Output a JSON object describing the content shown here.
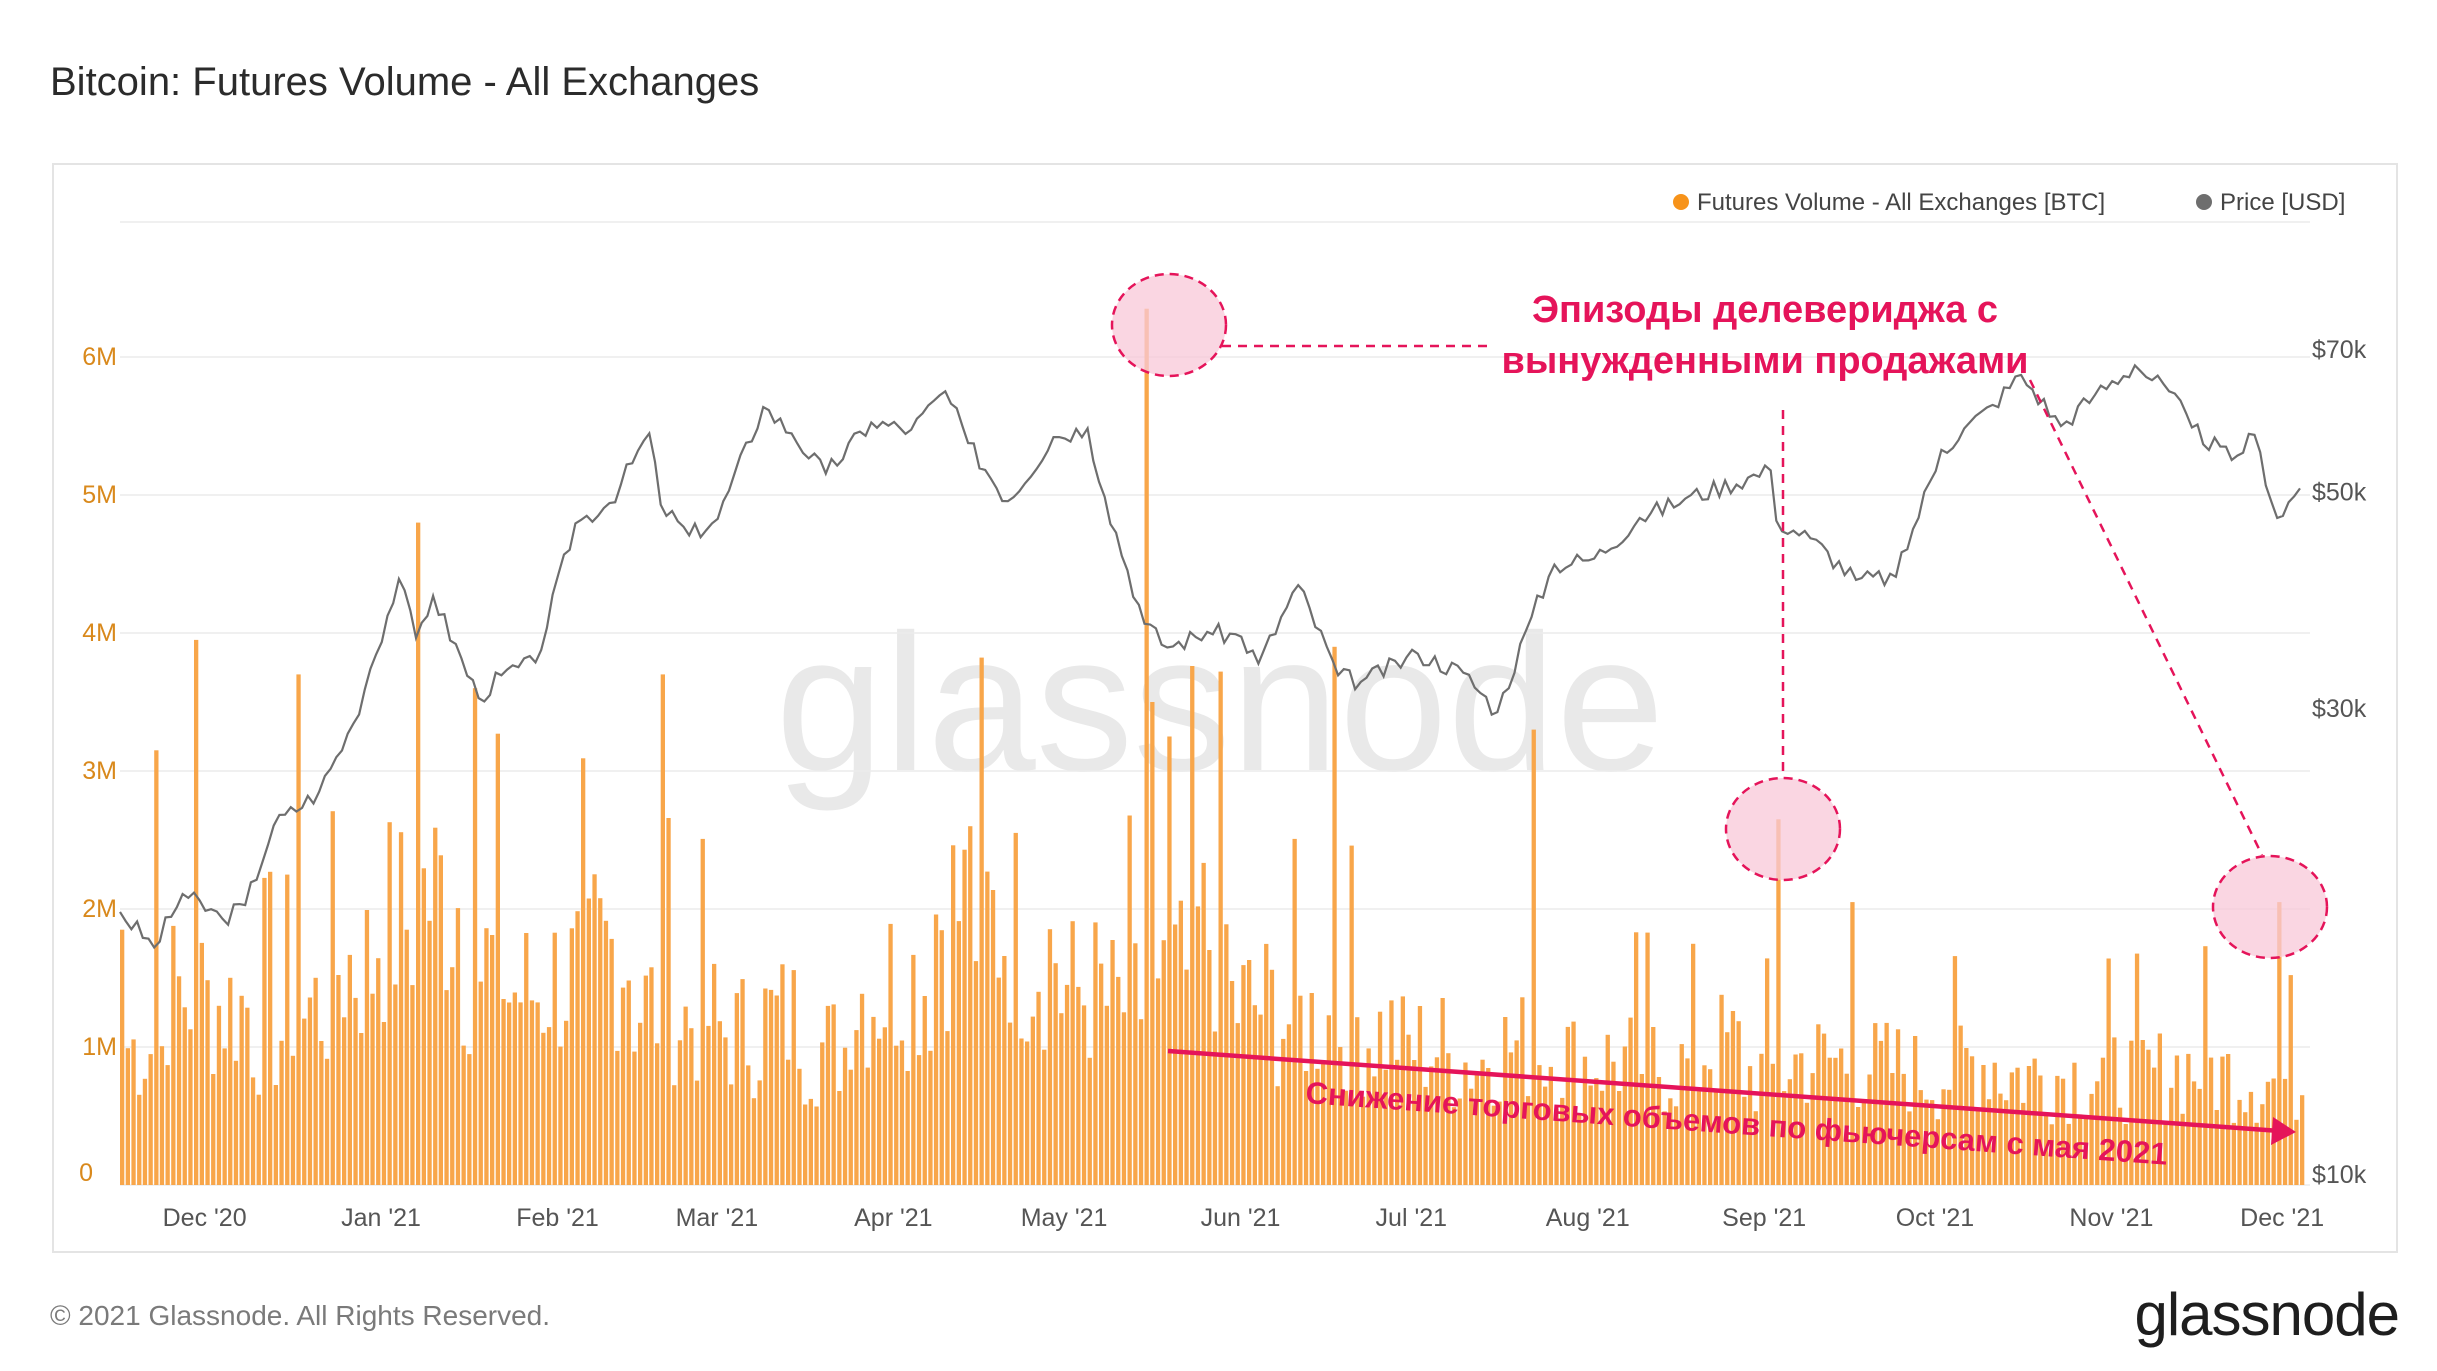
{
  "title": "Bitcoin: Futures Volume - All Exchanges",
  "footer": "© 2021 Glassnode. All Rights Reserved.",
  "brand": "glassnode",
  "watermark": "glassnode",
  "colors": {
    "volume": "#F7931A",
    "bar": "#F8A64A",
    "price": "#6e6e6e",
    "annotation": "#E5145A",
    "annotation_fill": "#F8C8D8"
  },
  "annotations": {
    "deleveraging": [
      "Эпизоды делевериджа с",
      "вынужденными продажами"
    ],
    "decline": "Снижение торговых объемов по фьючерсам с мая 2021"
  },
  "chart_data": {
    "type": "bar",
    "title": "Bitcoin: Futures Volume - All Exchanges",
    "legend": [
      {
        "name": "Futures Volume - All Exchanges [BTC]",
        "color": "#F7931A"
      },
      {
        "name": "Price [USD]",
        "color": "#6e6e6e"
      }
    ],
    "legend_position": "top-right",
    "grid": true,
    "x_ticks": [
      "Dec '20",
      "Jan '21",
      "Feb '21",
      "Mar '21",
      "Apr '21",
      "May '21",
      "Jun '21",
      "Jul '21",
      "Aug '21",
      "Sep '21",
      "Oct '21",
      "Nov '21",
      "Dec '21"
    ],
    "x_range": [
      "2020-11-20",
      "2021-12-08"
    ],
    "y_left": {
      "label": "",
      "ticks": [
        "0",
        "1M",
        "2M",
        "3M",
        "4M",
        "5M",
        "6M"
      ],
      "lim": [
        0,
        7000000
      ]
    },
    "y_right": {
      "label": "",
      "ticks": [
        "$10k",
        "$30k",
        "$50k",
        "$70k"
      ],
      "scale": "log",
      "lim": [
        10000,
        90000
      ]
    },
    "series": [
      {
        "name": "Futures Volume - All Exchanges [BTC]",
        "axis": "left",
        "volume_weekly_avg_M": [
          1.0,
          1.4,
          1.3,
          1.1,
          1.3,
          1.6,
          1.9,
          2.1,
          1.6,
          1.4,
          1.5,
          1.7,
          1.3,
          1.2,
          1.1,
          1.2,
          1.0,
          1.4,
          1.5,
          2.0,
          1.9,
          1.7,
          1.4,
          1.3,
          1.5,
          1.8,
          1.3,
          1.2,
          1.2,
          1.1,
          1.0,
          0.9,
          1.0,
          0.95,
          0.9,
          0.9,
          0.85,
          1.0,
          0.8,
          0.9,
          0.9,
          0.85,
          0.8,
          0.9,
          0.8,
          0.8,
          0.8,
          0.8,
          0.85,
          0.8,
          0.75,
          0.75
        ],
        "points": [
          {
            "x": "2020-11-20",
            "y": 1850000
          },
          {
            "x": "2020-11-26",
            "y": 3150000
          },
          {
            "x": "2020-12-03",
            "y": 3950000
          },
          {
            "x": "2020-12-21",
            "y": 3700000
          },
          {
            "x": "2021-01-11",
            "y": 4800000
          },
          {
            "x": "2021-01-21",
            "y": 3600000
          },
          {
            "x": "2021-02-23",
            "y": 3700000
          },
          {
            "x": "2021-04-18",
            "y": 2600000
          },
          {
            "x": "2021-05-19",
            "y": 6350000
          },
          {
            "x": "2021-05-20",
            "y": 3500000
          },
          {
            "x": "2021-05-23",
            "y": 3250000
          },
          {
            "x": "2021-06-21",
            "y": 3900000
          },
          {
            "x": "2021-07-26",
            "y": 3300000
          },
          {
            "x": "2021-09-07",
            "y": 2650000
          },
          {
            "x": "2021-09-20",
            "y": 2050000
          },
          {
            "x": "2021-12-04",
            "y": 2050000
          }
        ]
      },
      {
        "name": "Price [USD]",
        "axis": "right",
        "points": [
          {
            "x": "2020-11-20",
            "y": 18600
          },
          {
            "x": "2020-11-26",
            "y": 17100
          },
          {
            "x": "2020-12-01",
            "y": 19400
          },
          {
            "x": "2020-12-08",
            "y": 18300
          },
          {
            "x": "2020-12-12",
            "y": 18900
          },
          {
            "x": "2020-12-17",
            "y": 22800
          },
          {
            "x": "2020-12-25",
            "y": 24700
          },
          {
            "x": "2020-12-31",
            "y": 29000
          },
          {
            "x": "2021-01-03",
            "y": 33000
          },
          {
            "x": "2021-01-08",
            "y": 40800
          },
          {
            "x": "2021-01-11",
            "y": 35500
          },
          {
            "x": "2021-01-14",
            "y": 39200
          },
          {
            "x": "2021-01-22",
            "y": 30800
          },
          {
            "x": "2021-01-26",
            "y": 32500
          },
          {
            "x": "2021-02-01",
            "y": 33500
          },
          {
            "x": "2021-02-08",
            "y": 46500
          },
          {
            "x": "2021-02-14",
            "y": 48800
          },
          {
            "x": "2021-02-21",
            "y": 57500
          },
          {
            "x": "2021-02-23",
            "y": 48600
          },
          {
            "x": "2021-02-28",
            "y": 45200
          },
          {
            "x": "2021-03-05",
            "y": 47000
          },
          {
            "x": "2021-03-13",
            "y": 61200
          },
          {
            "x": "2021-03-18",
            "y": 57500
          },
          {
            "x": "2021-03-24",
            "y": 52300
          },
          {
            "x": "2021-04-01",
            "y": 59000
          },
          {
            "x": "2021-04-08",
            "y": 58000
          },
          {
            "x": "2021-04-14",
            "y": 63500
          },
          {
            "x": "2021-04-18",
            "y": 56200
          },
          {
            "x": "2021-04-25",
            "y": 49000
          },
          {
            "x": "2021-05-03",
            "y": 57000
          },
          {
            "x": "2021-05-09",
            "y": 58200
          },
          {
            "x": "2021-05-12",
            "y": 49500
          },
          {
            "x": "2021-05-19",
            "y": 36700
          },
          {
            "x": "2021-05-23",
            "y": 34700
          },
          {
            "x": "2021-05-30",
            "y": 36000
          },
          {
            "x": "2021-06-05",
            "y": 35600
          },
          {
            "x": "2021-06-08",
            "y": 33400
          },
          {
            "x": "2021-06-15",
            "y": 40200
          },
          {
            "x": "2021-06-22",
            "y": 32500
          },
          {
            "x": "2021-06-26",
            "y": 32000
          },
          {
            "x": "2021-07-06",
            "y": 34200
          },
          {
            "x": "2021-07-14",
            "y": 32700
          },
          {
            "x": "2021-07-20",
            "y": 29800
          },
          {
            "x": "2021-07-26",
            "y": 37300
          },
          {
            "x": "2021-07-30",
            "y": 42200
          },
          {
            "x": "2021-08-06",
            "y": 42800
          },
          {
            "x": "2021-08-14",
            "y": 47100
          },
          {
            "x": "2021-08-22",
            "y": 49300
          },
          {
            "x": "2021-09-06",
            "y": 52700
          },
          {
            "x": "2021-09-07",
            "y": 46800
          },
          {
            "x": "2021-09-13",
            "y": 44900
          },
          {
            "x": "2021-09-21",
            "y": 40700
          },
          {
            "x": "2021-09-28",
            "y": 41000
          },
          {
            "x": "2021-10-06",
            "y": 55300
          },
          {
            "x": "2021-10-15",
            "y": 61500
          },
          {
            "x": "2021-10-20",
            "y": 66000
          },
          {
            "x": "2021-10-27",
            "y": 58500
          },
          {
            "x": "2021-11-02",
            "y": 63000
          },
          {
            "x": "2021-11-09",
            "y": 67500
          },
          {
            "x": "2021-11-15",
            "y": 63500
          },
          {
            "x": "2021-11-19",
            "y": 58300
          },
          {
            "x": "2021-11-26",
            "y": 54000
          },
          {
            "x": "2021-11-30",
            "y": 57300
          },
          {
            "x": "2021-12-04",
            "y": 47100
          },
          {
            "x": "2021-12-08",
            "y": 50500
          }
        ]
      }
    ]
  }
}
